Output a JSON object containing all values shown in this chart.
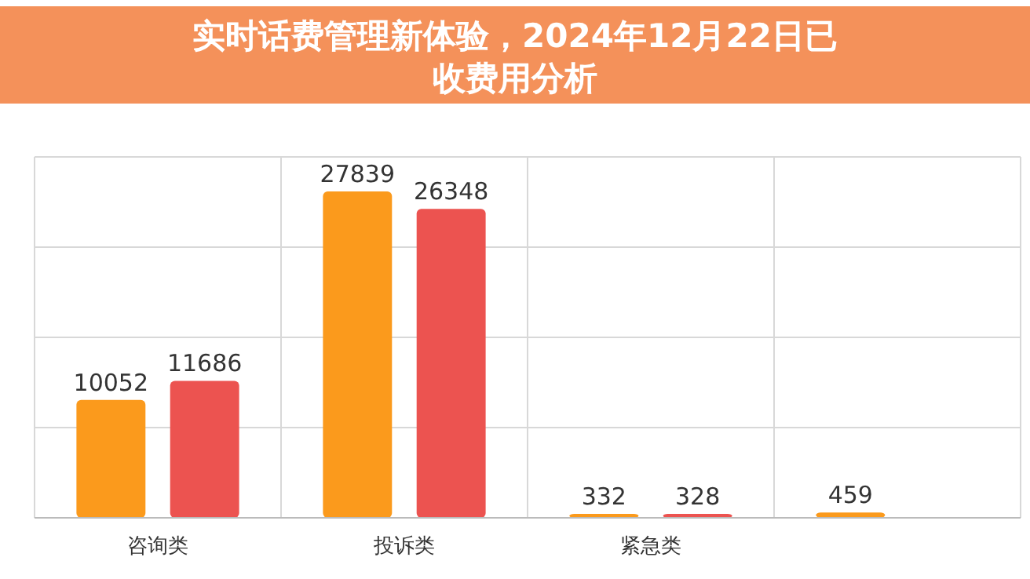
{
  "chart_data": {
    "type": "bar",
    "title": "实时话费管理新体验，2024年12月22日已收费用分析",
    "categories": [
      "咨询类",
      "投诉类",
      "紧急类",
      null
    ],
    "series": [
      {
        "color": "#fb9a1c",
        "values": [
          10052,
          27839,
          332,
          459
        ]
      },
      {
        "color": "#ec5350",
        "values": [
          11686,
          26348,
          328,
          null
        ]
      }
    ],
    "data_labels": true,
    "grid": true
  }
}
